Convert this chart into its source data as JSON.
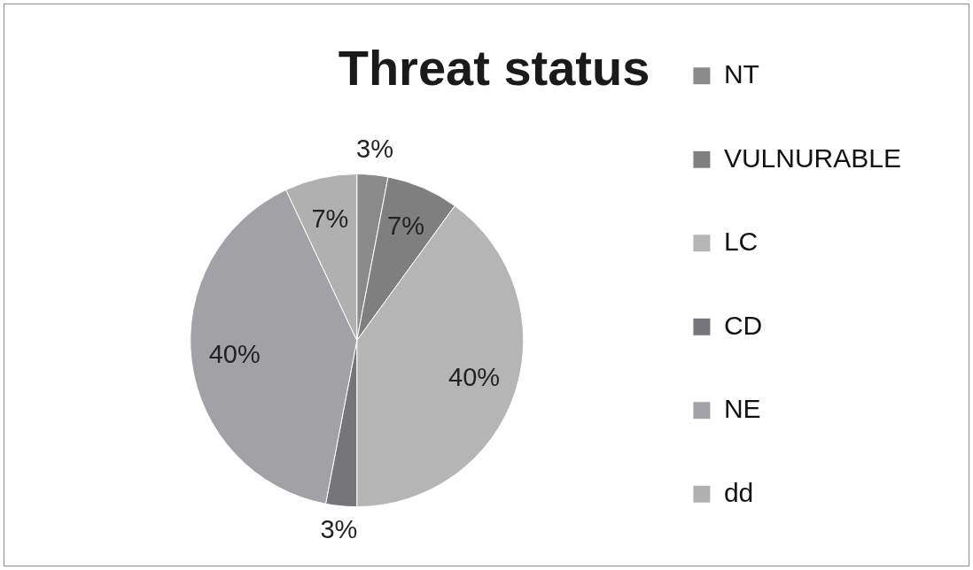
{
  "chart_data": {
    "type": "pie",
    "title": "Threat status",
    "categories": [
      "NT",
      "VULNURABLE",
      "LC",
      "CD",
      "NE",
      "dd"
    ],
    "values": [
      3,
      7,
      40,
      3,
      40,
      7
    ],
    "colors": [
      "#8a8a8a",
      "#7f7f7f",
      "#b5b5b5",
      "#76767a",
      "#a2a2a6",
      "#b0b0b0"
    ],
    "value_labels": [
      "3%",
      "7%",
      "40%",
      "3%",
      "40%",
      "7%"
    ],
    "legend": "right"
  }
}
